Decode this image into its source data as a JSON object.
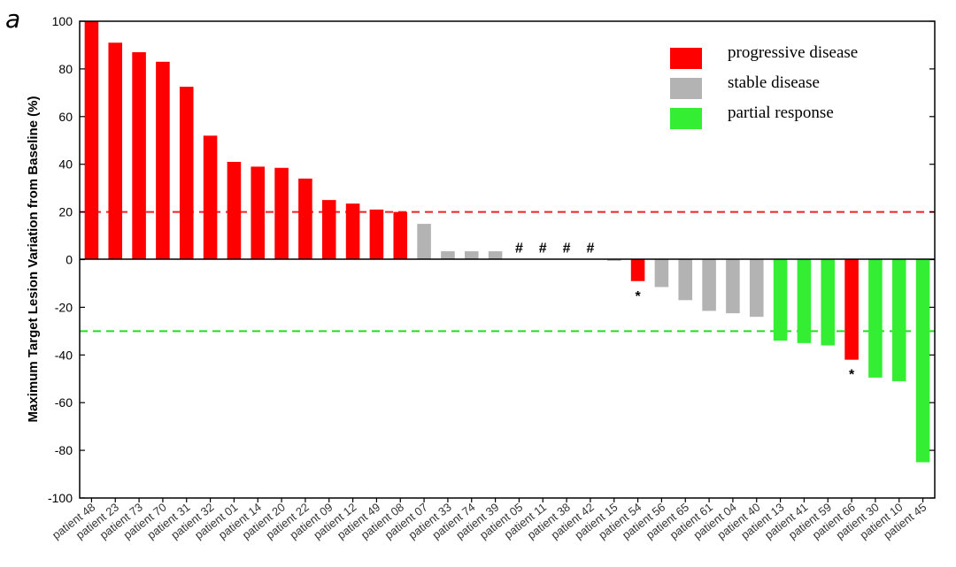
{
  "panel_label": "a",
  "chart_data": {
    "type": "bar",
    "title": "",
    "xlabel": "",
    "ylabel": "Maximum Target Lesion Variation from Baseline (%)",
    "ylim": [
      -100,
      100
    ],
    "yticks": [
      -100,
      -80,
      -60,
      -40,
      -20,
      0,
      20,
      40,
      60,
      80,
      100
    ],
    "grid": false,
    "legend_position": "top-right",
    "legend": [
      {
        "key": "progressive",
        "label": "progressive disease",
        "color": "#ff0000"
      },
      {
        "key": "stable",
        "label": "stable disease",
        "color": "#b3b3b3"
      },
      {
        "key": "partial",
        "label": "partial response",
        "color": "#33ee33"
      }
    ],
    "reference_lines": [
      {
        "y": 20,
        "color": "#ee2222"
      },
      {
        "y": -30,
        "color": "#22dd22"
      }
    ],
    "categories": [
      "patient 48",
      "patient 23",
      "patient 73",
      "patient 70",
      "patient 31",
      "patient 32",
      "patient 01",
      "patient 14",
      "patient 20",
      "patient 22",
      "patient 09",
      "patient 12",
      "patient 49",
      "patient 08",
      "patient 07",
      "patient 33",
      "patient 74",
      "patient 39",
      "patient 05",
      "patient 11",
      "patient 38",
      "patient 42",
      "patient 15",
      "patient 54",
      "patient 56",
      "patient 65",
      "patient 61",
      "patient 04",
      "patient 40",
      "patient 13",
      "patient 41",
      "patient 59",
      "patient 66",
      "patient 30",
      "patient 10",
      "patient 45"
    ],
    "values": [
      100,
      91,
      87,
      83,
      72.5,
      52,
      41,
      39,
      38.5,
      34,
      25,
      23.5,
      21,
      20,
      15,
      3.5,
      3.5,
      3.5,
      0,
      0,
      0,
      0,
      -0.5,
      -9,
      -11.5,
      -17,
      -21.5,
      -22.5,
      -24,
      -34,
      -35,
      -36,
      -42,
      -49.5,
      -51,
      -85
    ],
    "status": [
      "progressive",
      "progressive",
      "progressive",
      "progressive",
      "progressive",
      "progressive",
      "progressive",
      "progressive",
      "progressive",
      "progressive",
      "progressive",
      "progressive",
      "progressive",
      "progressive",
      "stable",
      "stable",
      "stable",
      "stable",
      "stable",
      "stable",
      "stable",
      "stable",
      "stable",
      "progressive",
      "stable",
      "stable",
      "stable",
      "stable",
      "stable",
      "partial",
      "partial",
      "partial",
      "progressive",
      "partial",
      "partial",
      "partial"
    ],
    "markers": [
      "",
      "",
      "",
      "",
      "",
      "",
      "",
      "",
      "",
      "",
      "",
      "",
      "",
      "",
      "",
      "",
      "",
      "",
      "#",
      "#",
      "#",
      "#",
      "",
      "*",
      "",
      "",
      "",
      "",
      "",
      "",
      "",
      "",
      "*",
      "",
      "",
      ""
    ]
  }
}
